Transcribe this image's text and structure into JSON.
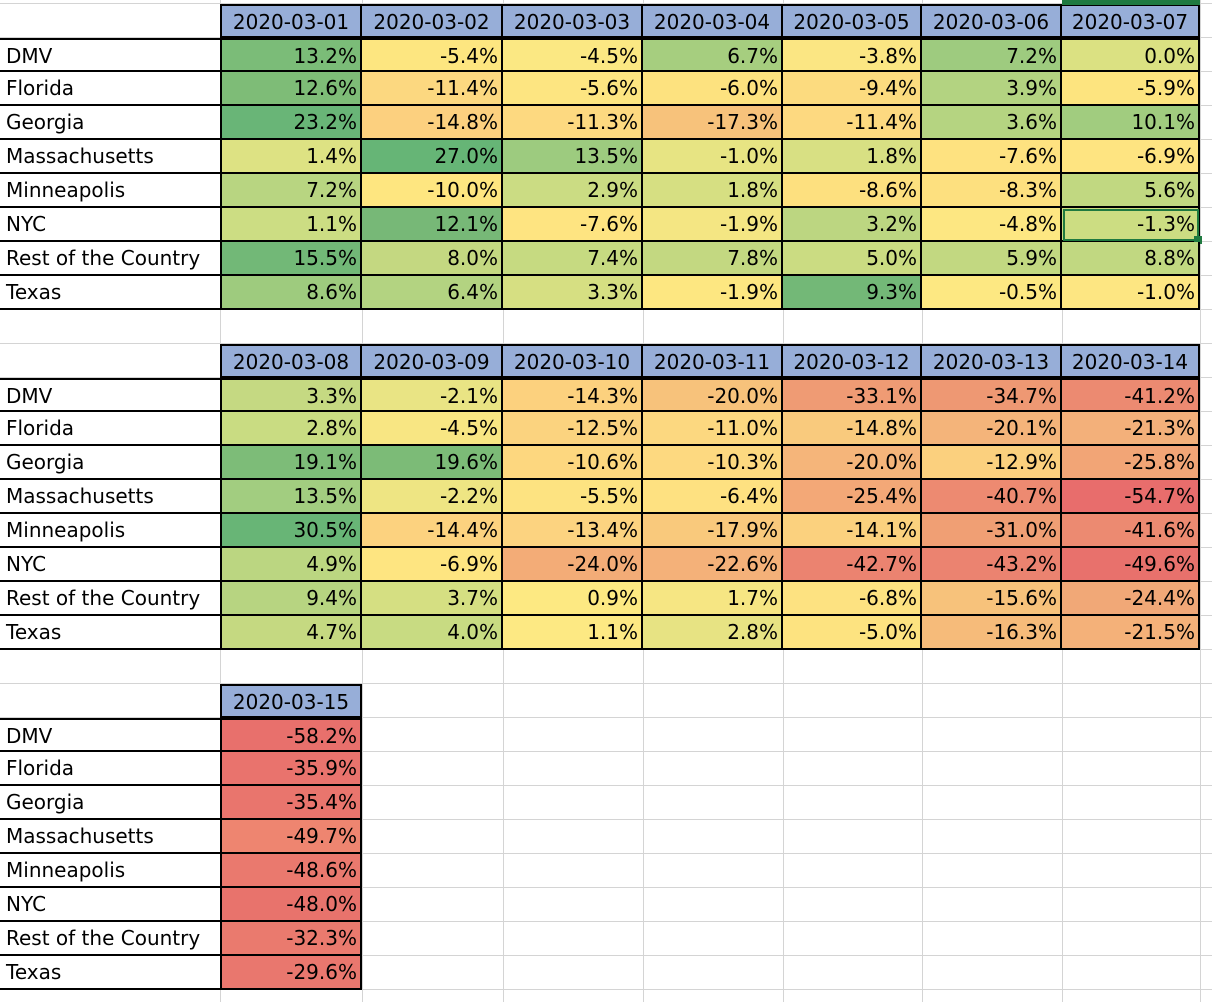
{
  "sheet": {
    "blocks": [
      {
        "dates": [
          "2020-03-01",
          "2020-03-02",
          "2020-03-03",
          "2020-03-04",
          "2020-03-05",
          "2020-03-06",
          "2020-03-07"
        ],
        "rows": [
          {
            "label": "DMV",
            "values": [
              "13.2%",
              "-5.4%",
              "-4.5%",
              "6.7%",
              "-3.8%",
              "7.2%",
              "0.0%"
            ],
            "colors": [
              "#7bbc78",
              "#fde680",
              "#fbe883",
              "#a6ce7f",
              "#fbe683",
              "#9ecb7f",
              "#dbe182"
            ]
          },
          {
            "label": "Florida",
            "values": [
              "12.6%",
              "-11.4%",
              "-5.6%",
              "-6.0%",
              "-9.4%",
              "3.9%",
              "-5.9%"
            ],
            "colors": [
              "#7ebc77",
              "#fcd880",
              "#fde581",
              "#fde27f",
              "#fcdb7f",
              "#b3d381",
              "#fde47f"
            ]
          },
          {
            "label": "Georgia",
            "values": [
              "23.2%",
              "-14.8%",
              "-11.3%",
              "-17.3%",
              "-11.4%",
              "3.6%",
              "10.1%"
            ],
            "colors": [
              "#69b577",
              "#fcd07f",
              "#fdd980",
              "#f7c27b",
              "#fdd980",
              "#b5d481",
              "#a1cc7f"
            ]
          },
          {
            "label": "Massachusetts",
            "values": [
              "1.4%",
              "27.0%",
              "13.5%",
              "-1.0%",
              "1.8%",
              "-7.6%",
              "-6.9%"
            ],
            "colors": [
              "#dde283",
              "#66b576",
              "#9dcb7f",
              "#e7e483",
              "#d8e083",
              "#fee280",
              "#fee481"
            ]
          },
          {
            "label": "Minneapolis",
            "values": [
              "7.2%",
              "-10.0%",
              "2.9%",
              "1.8%",
              "-8.6%",
              "-8.3%",
              "5.6%"
            ],
            "colors": [
              "#b8d581",
              "#fee680",
              "#cbdc83",
              "#d6df82",
              "#fde07f",
              "#fde07f",
              "#c1d881"
            ]
          },
          {
            "label": "NYC",
            "values": [
              "1.1%",
              "12.1%",
              "-7.6%",
              "-1.9%",
              "3.2%",
              "-4.8%",
              "-1.3%"
            ],
            "colors": [
              "#ccdd83",
              "#77b877",
              "#fee481",
              "#f4e683",
              "#bcd681",
              "#fde782",
              "#ccdd82"
            ]
          },
          {
            "label": "Rest of the Country",
            "values": [
              "15.5%",
              "8.0%",
              "7.4%",
              "7.8%",
              "5.0%",
              "5.9%",
              "8.8%"
            ],
            "colors": [
              "#72b877",
              "#c4d881",
              "#c6da81",
              "#c3d881",
              "#cbdc82",
              "#c2d881",
              "#c1d881"
            ]
          },
          {
            "label": "Texas",
            "values": [
              "8.6%",
              "6.4%",
              "3.3%",
              "-1.9%",
              "9.3%",
              "-0.5%",
              "-1.0%"
            ],
            "colors": [
              "#9ecb7e",
              "#b3d381",
              "#d6df82",
              "#fde781",
              "#73b877",
              "#fde882",
              "#fde682"
            ]
          }
        ]
      },
      {
        "dates": [
          "2020-03-08",
          "2020-03-09",
          "2020-03-10",
          "2020-03-11",
          "2020-03-12",
          "2020-03-13",
          "2020-03-14"
        ],
        "rows": [
          {
            "label": "DMV",
            "values": [
              "3.3%",
              "-2.1%",
              "-14.3%",
              "-20.0%",
              "-33.1%",
              "-34.7%",
              "-41.2%"
            ],
            "colors": [
              "#c5d982",
              "#e9e484",
              "#fcd17e",
              "#f7c27b",
              "#ef9b74",
              "#ee9873",
              "#ec8a71"
            ]
          },
          {
            "label": "Florida",
            "values": [
              "2.8%",
              "-4.5%",
              "-12.5%",
              "-11.0%",
              "-14.8%",
              "-20.1%",
              "-21.3%"
            ],
            "colors": [
              "#c9dc82",
              "#f8e683",
              "#fbd37f",
              "#fcd880",
              "#f9ca7d",
              "#f4b47a",
              "#f3b07a"
            ]
          },
          {
            "label": "Georgia",
            "values": [
              "19.1%",
              "19.6%",
              "-10.6%",
              "-10.3%",
              "-20.0%",
              "-12.9%",
              "-25.8%"
            ],
            "colors": [
              "#7dbc78",
              "#7cbb77",
              "#fdd77f",
              "#fdd980",
              "#f5b57a",
              "#fbd07e",
              "#f2a576"
            ]
          },
          {
            "label": "Massachusetts",
            "values": [
              "13.5%",
              "-2.2%",
              "-5.5%",
              "-6.4%",
              "-25.4%",
              "-40.7%",
              "-54.7%"
            ],
            "colors": [
              "#a2cd80",
              "#eee583",
              "#fde381",
              "#fee181",
              "#f3a877",
              "#ed8a71",
              "#e86d6c"
            ]
          },
          {
            "label": "Minneapolis",
            "values": [
              "30.5%",
              "-14.4%",
              "-13.4%",
              "-17.9%",
              "-14.1%",
              "-31.0%",
              "-41.6%"
            ],
            "colors": [
              "#68b576",
              "#fcd27f",
              "#fcd380",
              "#f9c97c",
              "#fbd17e",
              "#f09f74",
              "#ec8a71"
            ]
          },
          {
            "label": "NYC",
            "values": [
              "4.9%",
              "-6.9%",
              "-24.0%",
              "-22.6%",
              "-42.7%",
              "-43.2%",
              "-49.6%"
            ],
            "colors": [
              "#bbd681",
              "#fee581",
              "#f3ac77",
              "#f4b179",
              "#eb8370",
              "#eb8370",
              "#e8716c"
            ]
          },
          {
            "label": "Rest of the Country",
            "values": [
              "9.4%",
              "3.7%",
              "0.9%",
              "1.7%",
              "-6.8%",
              "-15.6%",
              "-24.4%"
            ],
            "colors": [
              "#b7d481",
              "#d5df82",
              "#fde982",
              "#f6e683",
              "#fde281",
              "#f7c27b",
              "#f1a877"
            ]
          },
          {
            "label": "Texas",
            "values": [
              "4.7%",
              "4.0%",
              "1.1%",
              "2.8%",
              "-5.0%",
              "-16.3%",
              "-21.5%"
            ],
            "colors": [
              "#c5d981",
              "#c8db82",
              "#fde983",
              "#e7e383",
              "#fde380",
              "#f6bb7a",
              "#f4b179"
            ]
          }
        ]
      },
      {
        "dates": [
          "2020-03-15"
        ],
        "rows": [
          {
            "label": "DMV",
            "values": [
              "-58.2%"
            ],
            "colors": [
              "#e8706c"
            ]
          },
          {
            "label": "Florida",
            "values": [
              "-35.9%"
            ],
            "colors": [
              "#e9736d"
            ]
          },
          {
            "label": "Georgia",
            "values": [
              "-35.4%"
            ],
            "colors": [
              "#e9756d"
            ]
          },
          {
            "label": "Massachusetts",
            "values": [
              "-49.7%"
            ],
            "colors": [
              "#ee8570"
            ]
          },
          {
            "label": "Minneapolis",
            "values": [
              "-48.6%"
            ],
            "colors": [
              "#ea796e"
            ]
          },
          {
            "label": "NYC",
            "values": [
              "-48.0%"
            ],
            "colors": [
              "#e8736c"
            ]
          },
          {
            "label": "Rest of the Country",
            "values": [
              "-32.3%"
            ],
            "colors": [
              "#ea7a6e"
            ]
          },
          {
            "label": "Texas",
            "values": [
              "-29.6%"
            ],
            "colors": [
              "#e9776e"
            ]
          }
        ]
      }
    ],
    "selected": {
      "block": 0,
      "row": 5,
      "col": 6
    },
    "colors": {
      "header": "#97aed8",
      "gridline": "#d4d4d4",
      "selection": "#1f7a40"
    }
  }
}
